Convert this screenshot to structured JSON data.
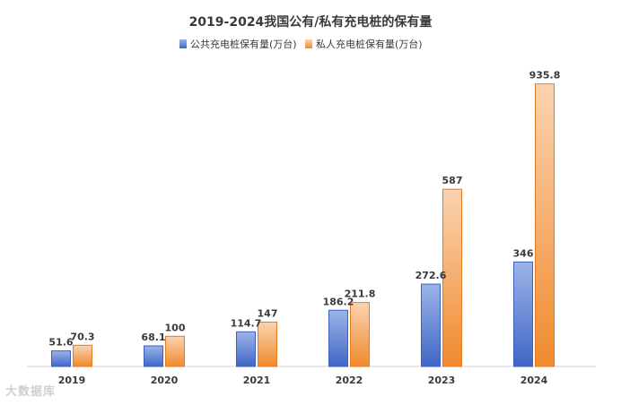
{
  "chart_data": {
    "type": "bar",
    "title": "2019-2024我国公有/私有充电桩的保有量",
    "xlabel": "",
    "ylabel": "",
    "categories": [
      "2019",
      "2020",
      "2021",
      "2022",
      "2023",
      "2024"
    ],
    "series": [
      {
        "name": "公共充电桩保有量(万台)",
        "values": [
          51.6,
          68.1,
          114.7,
          186.2,
          272.6,
          346
        ],
        "labels": [
          "51.6",
          "68.1",
          "114.7",
          "186.2",
          "272.6",
          "346"
        ]
      },
      {
        "name": "私人充电桩保有量(万台)",
        "values": [
          70.3,
          100,
          147,
          211.8,
          587,
          935.8
        ],
        "labels": [
          "70.3",
          "100",
          "147",
          "211.8",
          "587",
          "935.8"
        ]
      }
    ],
    "ylim": [
      0,
      1000
    ],
    "grid": false,
    "legend": "top-center"
  },
  "colors": {
    "public_top": "#9db4e8",
    "public_bottom": "#3f66c6",
    "public_edge": "#3a5fc0",
    "private_top": "#fbd3b0",
    "private_bottom": "#f08a2e",
    "private_edge": "#e67a1e"
  },
  "watermark": "大数据库"
}
